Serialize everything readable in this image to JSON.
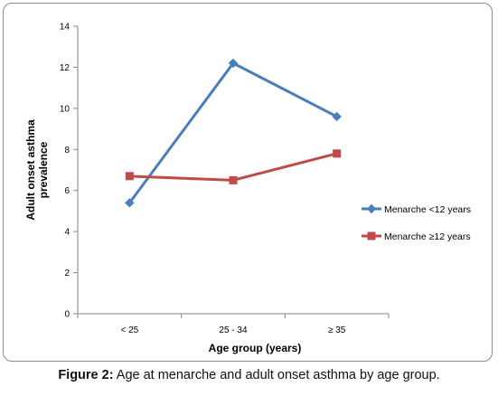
{
  "chart_data": {
    "type": "line",
    "categories": [
      "< 25",
      "25 - 34",
      "≥ 35"
    ],
    "series": [
      {
        "name": "Menarche <12  years",
        "values": [
          5.4,
          12.2,
          9.6
        ],
        "color": "#4a7ebb",
        "marker": "diamond"
      },
      {
        "name": "Menarche ≥12  years",
        "values": [
          6.7,
          6.5,
          7.8
        ],
        "color": "#be4b48",
        "marker": "square"
      }
    ],
    "xlabel": "Age group (years)",
    "ylabel_lines": [
      "Adult onset asthma",
      "prevalence"
    ],
    "ylim": [
      0,
      14
    ],
    "yticks": [
      0,
      2,
      4,
      6,
      8,
      10,
      12,
      14
    ],
    "grid": false,
    "legend_position": "right"
  },
  "caption": {
    "label": "Figure 2:",
    "text": " Age at menarche and adult onset asthma by age group."
  }
}
